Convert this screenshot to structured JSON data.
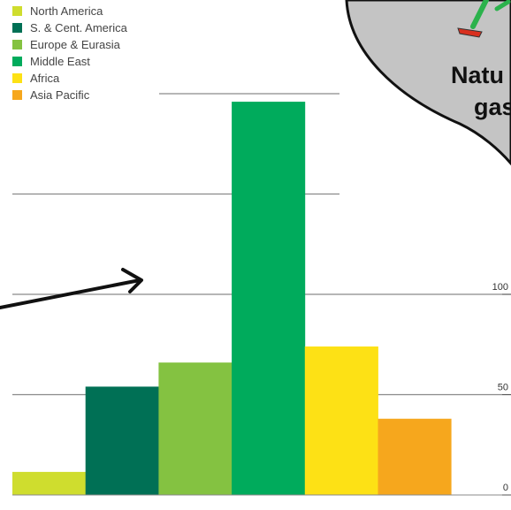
{
  "chart_data": {
    "type": "bar",
    "categories": [
      "North America",
      "S. & Cent. America",
      "Europe & Eurasia",
      "Middle East",
      "Africa",
      "Asia Pacific"
    ],
    "values": [
      11.5,
      54,
      66,
      196,
      74,
      38
    ],
    "colors": [
      "#cfdd2e",
      "#007055",
      "#84c241",
      "#00ab5c",
      "#fde115",
      "#f6a71d"
    ],
    "legend": [
      {
        "label": "North America",
        "color": "#cfdd2e"
      },
      {
        "label": "S. & Cent. America",
        "color": "#007055"
      },
      {
        "label": "Europe & Eurasia",
        "color": "#84c241"
      },
      {
        "label": "Middle East",
        "color": "#00ab5c"
      },
      {
        "label": "Africa",
        "color": "#fde115"
      },
      {
        "label": "Asia Pacific",
        "color": "#f6a71d"
      }
    ],
    "legend_position": "top-left",
    "yaxis_side": "right",
    "yticks": [
      "0",
      "50",
      "100"
    ],
    "ylim": [
      0,
      200
    ],
    "gridlines": [
      50,
      100,
      150,
      200
    ],
    "grid": true,
    "annotation": {
      "text_lines": [
        "Natu",
        "gas"
      ]
    }
  }
}
